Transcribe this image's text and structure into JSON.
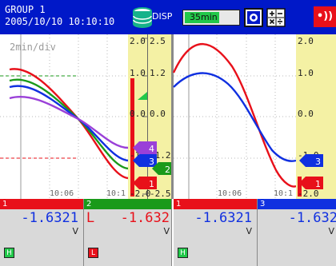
{
  "header": {
    "group": "GROUP 1",
    "datetime": "2005/10/10 10:10:10",
    "disp_label": "DISP",
    "timebase": "35min",
    "alarm_symbol": "•))"
  },
  "colors": {
    "header_bg": "#0018c8",
    "ch1": "#e8101a",
    "ch2": "#1a9a1a",
    "ch3": "#1030e0",
    "ch4": "#9a40d8",
    "scale_bg": "#f4f1a4",
    "alarm_high": "#22c84a",
    "alarm_low": "#e8101a"
  },
  "left_trend": {
    "div_label": "2min/div",
    "time_labels": [
      "10:06",
      "10:1"
    ],
    "scale_a": [
      "2.0",
      "1.0",
      "0.0",
      "-1.0",
      "-2.0"
    ],
    "scale_b": [
      "2.5",
      "1.2",
      "0.0",
      "-1.2",
      "-2.5"
    ],
    "markers": [
      "4",
      "3",
      "2",
      "1"
    ]
  },
  "right_trend": {
    "time_labels": [
      "10:06",
      "10:1"
    ],
    "scale": [
      "2.0",
      "1.0",
      "0.0",
      "-1.0",
      "-2.0"
    ],
    "markers": [
      "3",
      "1"
    ]
  },
  "digital": [
    {
      "ch": "1",
      "value": "-1.6321",
      "unit": "V",
      "flag": "",
      "alarm": "H",
      "color": "#e8101a",
      "value_color": "#1030e0",
      "alarm_color": "#22c84a"
    },
    {
      "ch": "2",
      "value": "-1.632",
      "unit": "V",
      "flag": "L",
      "alarm": "L",
      "color": "#1a9a1a",
      "value_color": "#e8101a",
      "alarm_color": "#e8101a"
    },
    {
      "ch": "1",
      "value": "-1.6321",
      "unit": "V",
      "flag": "",
      "alarm": "H",
      "color": "#e8101a",
      "value_color": "#1030e0",
      "alarm_color": "#22c84a"
    },
    {
      "ch": "3",
      "value": "-1.632",
      "unit": "V",
      "flag": "",
      "alarm": "",
      "color": "#1030e0",
      "value_color": "#1030e0",
      "alarm_color": ""
    }
  ]
}
